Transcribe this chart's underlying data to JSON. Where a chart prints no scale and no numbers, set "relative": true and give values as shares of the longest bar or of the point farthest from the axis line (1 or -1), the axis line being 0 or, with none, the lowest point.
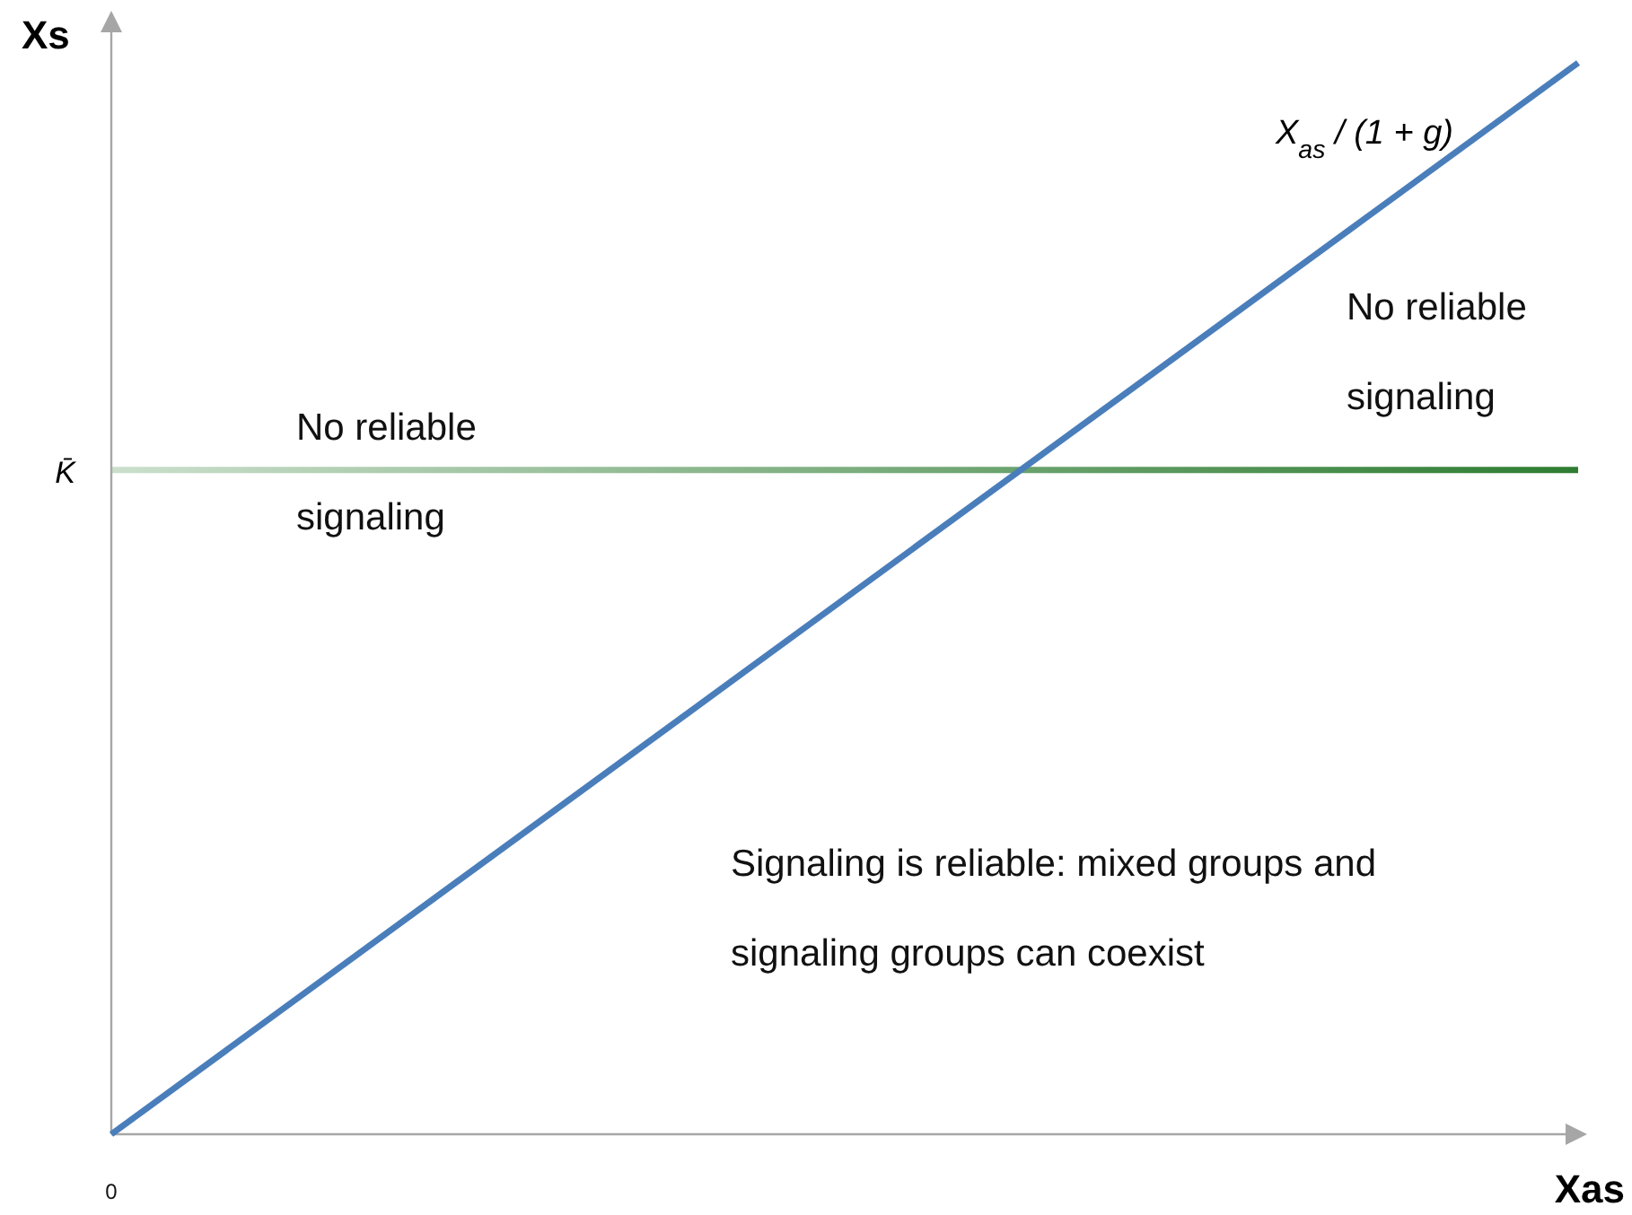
{
  "chart_data": {
    "type": "line",
    "relative": true,
    "categories": [
      null,
      null
    ],
    "xlabel": "Xas",
    "ylabel": "Xs",
    "series": [
      {
        "name": "X$_{as}$ / (1 + g)",
        "color": "#4a7ebb",
        "values": [
          0,
          1
        ]
      }
    ],
    "ref_lines": [
      {
        "axis": "y",
        "value": 0.62,
        "label": "K̄",
        "color": "#2e7d32"
      }
    ],
    "annotations": [
      "No reliable signaling",
      "No reliable signaling",
      "Signaling is reliable: mixed groups and signaling groups can coexist",
      "0"
    ],
    "marker": "none",
    "line_style": "solid"
  }
}
